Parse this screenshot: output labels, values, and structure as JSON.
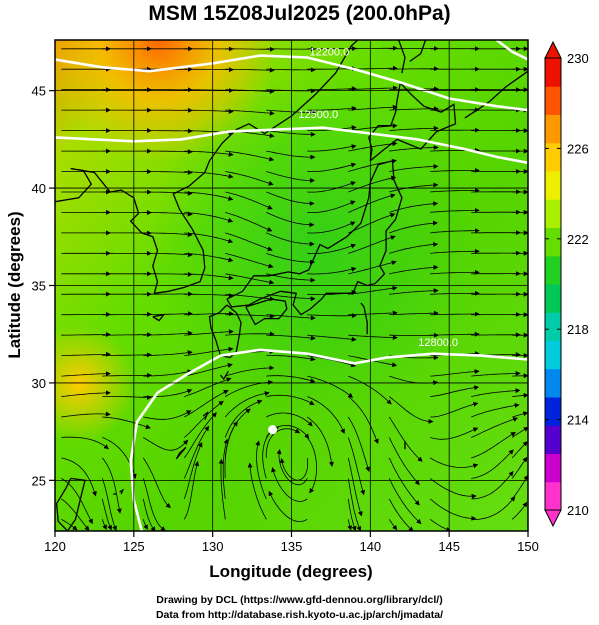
{
  "title": "MSM 15Z08Jul2025 (200.0hPa)",
  "x_axis": {
    "label": "Longitude (degrees)",
    "range": [
      120,
      150
    ],
    "ticks": [
      120,
      125,
      130,
      135,
      140,
      145,
      150
    ]
  },
  "y_axis": {
    "label": "Latitude (degrees)",
    "range": [
      22.4,
      47.6
    ],
    "ticks": [
      25,
      30,
      35,
      40,
      45
    ]
  },
  "colorbar": {
    "range": [
      210,
      230
    ],
    "ticks": [
      210,
      214,
      218,
      222,
      226,
      230
    ],
    "colors": [
      "#ff33cc",
      "#cc00cc",
      "#5500cc",
      "#0022dd",
      "#0088ee",
      "#00ccdd",
      "#00ccaa",
      "#00c855",
      "#22d022",
      "#66dd00",
      "#aaee00",
      "#eeee00",
      "#ffcc00",
      "#ff9900",
      "#ff5500",
      "#ee1100"
    ]
  },
  "height_contours": [
    {
      "label": "12500.0",
      "points": [
        [
          120,
          42.6
        ],
        [
          125,
          42.4
        ],
        [
          128,
          42.5
        ],
        [
          131,
          42.9
        ],
        [
          134,
          43.0
        ],
        [
          137,
          43.1
        ],
        [
          140,
          42.8
        ],
        [
          143,
          42.5
        ],
        [
          146,
          42.0
        ],
        [
          148,
          41.6
        ],
        [
          150,
          41.3
        ]
      ],
      "label_at": [
        136.7,
        43.6
      ]
    },
    {
      "label": "12200.0",
      "points": [
        [
          120,
          46.6
        ],
        [
          123,
          46.2
        ],
        [
          126,
          46.0
        ],
        [
          130,
          46.4
        ],
        [
          133,
          46.8
        ],
        [
          136,
          46.7
        ],
        [
          139,
          46.1
        ],
        [
          142,
          45.4
        ],
        [
          145,
          44.6
        ],
        [
          148,
          44.2
        ],
        [
          150,
          44.0
        ]
      ],
      "label_at": [
        137.4,
        46.8
      ]
    },
    {
      "label": "12800.0",
      "points": [
        [
          125.5,
          22.4
        ],
        [
          125.0,
          24.0
        ],
        [
          124.8,
          26.0
        ],
        [
          125.2,
          28.0
        ],
        [
          126.5,
          29.5
        ],
        [
          128.5,
          30.5
        ],
        [
          130.5,
          31.4
        ],
        [
          133,
          31.7
        ],
        [
          136,
          31.5
        ],
        [
          139,
          31.0
        ],
        [
          141,
          31.3
        ],
        [
          144,
          31.5
        ],
        [
          147,
          31.4
        ],
        [
          150,
          31.2
        ]
      ],
      "label_at": [
        144.3,
        31.9
      ]
    },
    {
      "label": "",
      "points": [
        [
          148.0,
          47.6
        ],
        [
          149,
          47.0
        ],
        [
          150,
          46.6
        ]
      ],
      "label_at": null
    }
  ],
  "high_marker": {
    "lon": 133.8,
    "lat": 27.6
  },
  "credit_line1": "Drawing by DCL (https://www.gfd-dennou.org/library/dcl/)",
  "credit_line2": "Data from http://database.rish.kyoto-u.ac.jp/arch/jmadata/"
}
